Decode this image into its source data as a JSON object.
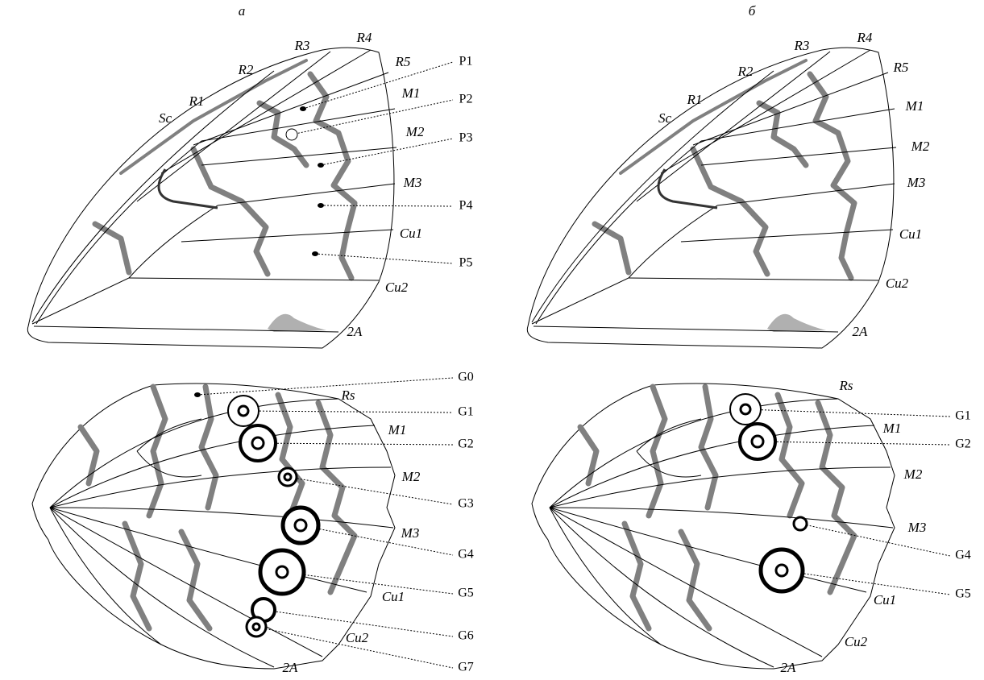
{
  "panels": [
    {
      "title": "а",
      "forewing": {
        "veins": [
          "Sc",
          "R1",
          "R2",
          "R3",
          "R4",
          "R5",
          "M1",
          "M2",
          "M3",
          "Cu1",
          "Cu2",
          "2A"
        ],
        "spots": [
          "P1",
          "P2",
          "P3",
          "P4",
          "P5"
        ]
      },
      "hindwing": {
        "veins": [
          "Rs",
          "M1",
          "M2",
          "M3",
          "Cu1",
          "Cu2",
          "2A"
        ],
        "spots": [
          "G0",
          "G1",
          "G2",
          "G3",
          "G4",
          "G5",
          "G6",
          "G7"
        ]
      }
    },
    {
      "title": "б",
      "forewing": {
        "veins": [
          "Sc",
          "R1",
          "R2",
          "R3",
          "R4",
          "R5",
          "M1",
          "M2",
          "M3",
          "Cu1",
          "Cu2",
          "2A"
        ],
        "spots": []
      },
      "hindwing": {
        "veins": [
          "Rs",
          "M1",
          "M2",
          "M3",
          "Cu1",
          "Cu2",
          "2A"
        ],
        "spots": [
          "G1",
          "G2",
          "G4",
          "G5"
        ]
      }
    }
  ]
}
